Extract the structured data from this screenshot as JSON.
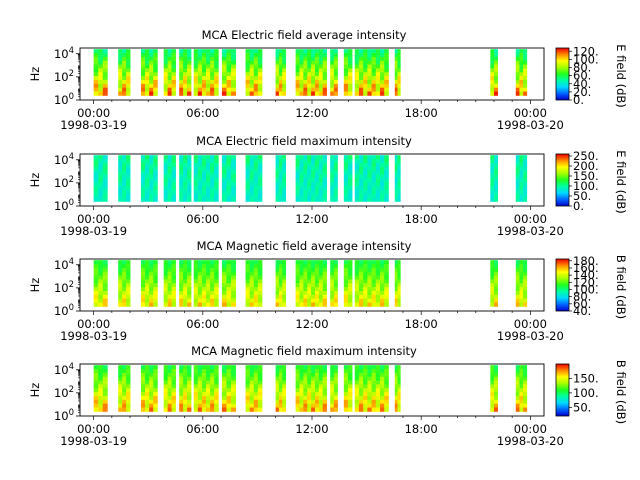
{
  "figure": {
    "x_tick_labels": [
      "00:00",
      "06:00",
      "12:00",
      "18:00",
      "00:00"
    ],
    "date_labels": [
      "1998-03-19",
      "1998-03-20"
    ],
    "ylabel": "Hz",
    "y_tick_labels": [
      "0",
      "2",
      "4"
    ]
  },
  "chart_data": [
    {
      "type": "heatmap",
      "title": "MCA  Electric field average intensity",
      "ylabel": "Hz",
      "colorbar_label": "E field (dB)",
      "colorbar_ticks": [
        "0.",
        "20.",
        "40.",
        "60.",
        "80.",
        "100.",
        "120."
      ],
      "colorbar_range": [
        0,
        128
      ],
      "x_range_hours": [
        -0.75,
        24.75
      ],
      "y_log_range": [
        0,
        4.5
      ],
      "data_coverage_hours": [
        [
          0.0,
          0.75
        ],
        [
          1.35,
          2.0
        ],
        [
          2.6,
          3.5
        ],
        [
          3.85,
          4.5
        ],
        [
          4.7,
          5.35
        ],
        [
          5.5,
          6.85
        ],
        [
          7.05,
          7.8
        ],
        [
          8.35,
          9.25
        ],
        [
          10.0,
          10.55
        ],
        [
          11.1,
          12.8
        ],
        [
          13.0,
          13.4
        ],
        [
          13.75,
          14.2
        ],
        [
          14.35,
          16.2
        ],
        [
          16.55,
          16.85
        ],
        [
          21.8,
          22.2
        ],
        [
          23.2,
          23.8
        ]
      ],
      "value_range_db": [
        30,
        128
      ]
    },
    {
      "type": "heatmap",
      "title": "MCA  Electric field maximum intensity",
      "ylabel": "Hz",
      "colorbar_label": "E field (dB)",
      "colorbar_ticks": [
        "0.",
        "50.",
        "100.",
        "150.",
        "200.",
        "250."
      ],
      "colorbar_range": [
        0,
        260
      ],
      "x_range_hours": [
        -0.75,
        24.75
      ],
      "y_log_range": [
        0,
        4.5
      ],
      "data_coverage_hours": [
        [
          0.0,
          0.75
        ],
        [
          1.35,
          2.0
        ],
        [
          2.6,
          3.5
        ],
        [
          3.85,
          4.5
        ],
        [
          4.7,
          5.35
        ],
        [
          5.5,
          6.85
        ],
        [
          7.05,
          7.8
        ],
        [
          8.35,
          9.25
        ],
        [
          10.0,
          10.55
        ],
        [
          11.1,
          12.8
        ],
        [
          13.0,
          13.4
        ],
        [
          13.75,
          14.2
        ],
        [
          14.35,
          16.2
        ],
        [
          16.55,
          16.85
        ],
        [
          21.8,
          22.2
        ],
        [
          23.2,
          23.8
        ]
      ],
      "value_range_db": [
        50,
        160
      ]
    },
    {
      "type": "heatmap",
      "title": "MCA  Magnetic field average intensity",
      "ylabel": "Hz",
      "colorbar_label": "B field (dB)",
      "colorbar_ticks": [
        "40.",
        "60.",
        "80.",
        "100.",
        "120.",
        "140.",
        "160.",
        "180."
      ],
      "colorbar_range": [
        40,
        185
      ],
      "x_range_hours": [
        -0.75,
        24.75
      ],
      "y_log_range": [
        0,
        4.5
      ],
      "data_coverage_hours": [
        [
          0.0,
          0.75
        ],
        [
          1.35,
          2.0
        ],
        [
          2.6,
          3.5
        ],
        [
          3.85,
          4.5
        ],
        [
          4.7,
          5.35
        ],
        [
          5.5,
          6.85
        ],
        [
          7.05,
          7.8
        ],
        [
          8.35,
          9.25
        ],
        [
          10.0,
          10.55
        ],
        [
          11.1,
          12.8
        ],
        [
          13.0,
          13.4
        ],
        [
          13.75,
          14.2
        ],
        [
          14.35,
          16.2
        ],
        [
          16.55,
          16.85
        ],
        [
          21.8,
          22.2
        ],
        [
          23.2,
          23.8
        ]
      ],
      "value_range_db": [
        90,
        165
      ]
    },
    {
      "type": "heatmap",
      "title": "MCA  Magnetic field maximum intensity",
      "ylabel": "Hz",
      "colorbar_label": "B field (dB)",
      "colorbar_ticks": [
        "50.",
        "100.",
        "150."
      ],
      "colorbar_range": [
        20,
        200
      ],
      "x_range_hours": [
        -0.75,
        24.75
      ],
      "y_log_range": [
        0,
        4.5
      ],
      "data_coverage_hours": [
        [
          0.0,
          0.75
        ],
        [
          1.35,
          2.0
        ],
        [
          2.6,
          3.5
        ],
        [
          3.85,
          4.5
        ],
        [
          4.7,
          5.35
        ],
        [
          5.5,
          6.85
        ],
        [
          7.05,
          7.8
        ],
        [
          8.35,
          9.25
        ],
        [
          10.0,
          10.55
        ],
        [
          11.1,
          12.8
        ],
        [
          13.0,
          13.4
        ],
        [
          13.75,
          14.2
        ],
        [
          14.35,
          16.2
        ],
        [
          16.55,
          16.85
        ],
        [
          21.8,
          22.2
        ],
        [
          23.2,
          23.8
        ]
      ],
      "value_range_db": [
        80,
        190
      ]
    }
  ]
}
